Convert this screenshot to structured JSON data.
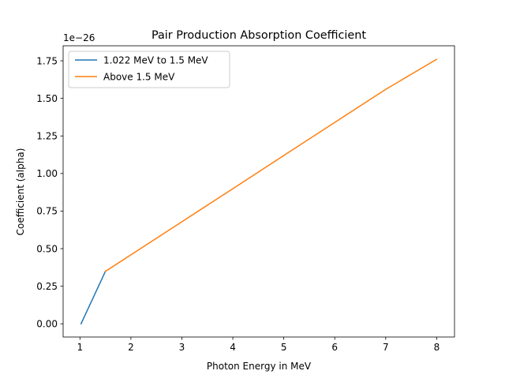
{
  "chart_data": {
    "type": "line",
    "title": "Pair Production Absorption Coefficient",
    "xlabel": "Photon Energy in MeV",
    "ylabel": "Coefficient (alpha)",
    "y_offset_text": "1e−26",
    "y_scale_factor": 1e-26,
    "xlim": [
      0.67,
      8.35
    ],
    "ylim": [
      -0.088,
      1.85
    ],
    "x_ticks": [
      1,
      2,
      3,
      4,
      5,
      6,
      7,
      8
    ],
    "x_tick_labels": [
      "1",
      "2",
      "3",
      "4",
      "5",
      "6",
      "7",
      "8"
    ],
    "y_ticks": [
      0,
      0.25,
      0.5,
      0.75,
      1.0,
      1.25,
      1.5,
      1.75
    ],
    "y_tick_labels": [
      "0.00",
      "0.25",
      "0.50",
      "0.75",
      "1.00",
      "1.25",
      "1.50",
      "1.75"
    ],
    "grid": false,
    "legend_position": "upper-left",
    "series": [
      {
        "name": "1.022 MeV to 1.5 MeV",
        "color": "#1f77b4",
        "x": [
          1.022,
          1.1,
          1.2,
          1.3,
          1.4,
          1.5
        ],
        "y": [
          0.0,
          0.057,
          0.13,
          0.203,
          0.276,
          0.349
        ]
      },
      {
        "name": "Above 1.5 MeV",
        "color": "#ff7f0e",
        "x": [
          1.5,
          2,
          3,
          4,
          5,
          6,
          7,
          8
        ],
        "y": [
          0.349,
          0.459,
          0.679,
          0.899,
          1.12,
          1.34,
          1.56,
          1.76
        ]
      }
    ]
  }
}
